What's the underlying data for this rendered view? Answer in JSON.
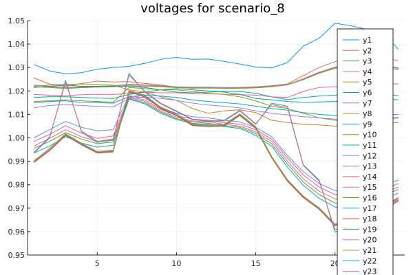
{
  "chart_data": {
    "type": "line",
    "title": "voltages for scenario_8",
    "xlabel": "",
    "ylabel": "",
    "xlim": [
      0.6,
      24.4
    ],
    "ylim": [
      0.95,
      1.05
    ],
    "xticks": [
      5,
      10,
      15,
      20
    ],
    "yticks": [
      0.95,
      0.96,
      0.97,
      0.98,
      0.99,
      1.0,
      1.01,
      1.02,
      1.03,
      1.04,
      1.05
    ],
    "ytick_labels": [
      "0.95",
      "0.96",
      "0.97",
      "0.98",
      "0.99",
      "1.00",
      "1.01",
      "1.02",
      "1.03",
      "1.04",
      "1.05"
    ],
    "grid": true,
    "legend_position": "top-right",
    "x": [
      1,
      2,
      3,
      4,
      5,
      6,
      7,
      8,
      9,
      10,
      11,
      12,
      13,
      14,
      15,
      16,
      17,
      18,
      19,
      20,
      21,
      22,
      23,
      24
    ],
    "series": [
      {
        "name": "y1",
        "color": "#009AFA",
        "values": [
          1.0313,
          1.0285,
          1.0273,
          1.0278,
          1.0293,
          1.03,
          1.0305,
          1.0318,
          1.0335,
          1.0343,
          1.0335,
          1.0336,
          1.0326,
          1.0315,
          1.0302,
          1.0298,
          1.0321,
          1.0391,
          1.0425,
          1.0489,
          1.0478,
          1.0463,
          1.0448,
          1.0378
        ]
      },
      {
        "name": "y2",
        "color": "#E36F47",
        "values": [
          1.0255,
          1.023,
          1.022,
          1.0232,
          1.0242,
          1.0238,
          1.024,
          1.0232,
          1.0226,
          1.0215,
          1.0212,
          1.0215,
          1.0214,
          1.0215,
          1.0218,
          1.0222,
          1.023,
          1.0265,
          1.03,
          1.0325,
          1.0345,
          1.0345,
          1.034,
          1.033
        ]
      },
      {
        "name": "y3",
        "color": "#3EA44E",
        "values": [
          1.0225,
          1.022,
          1.0215,
          1.0218,
          1.022,
          1.0222,
          1.0228,
          1.0226,
          1.0222,
          1.0218,
          1.0216,
          1.0216,
          1.0215,
          1.0215,
          1.0216,
          1.0222,
          1.0228,
          1.025,
          1.0278,
          1.03,
          1.0312,
          1.0315,
          1.031,
          1.0298
        ]
      },
      {
        "name": "y4",
        "color": "#C371D2",
        "values": [
          1.0225,
          1.0218,
          1.0213,
          1.0215,
          1.0218,
          1.022,
          1.0226,
          1.0224,
          1.022,
          1.0216,
          1.0215,
          1.0214,
          1.0214,
          1.0213,
          1.0215,
          1.022,
          1.0228,
          1.0252,
          1.028,
          1.0302,
          1.0313,
          1.0316,
          1.031,
          1.0295
        ]
      },
      {
        "name": "y5",
        "color": "#AC8D18",
        "values": [
          1.0218,
          1.0215,
          1.021,
          1.0214,
          1.0216,
          1.0218,
          1.0222,
          1.022,
          1.0218,
          1.0214,
          1.0212,
          1.0212,
          1.0211,
          1.0211,
          1.0213,
          1.0218,
          1.0226,
          1.0248,
          1.0275,
          1.0296,
          1.0308,
          1.031,
          1.0305,
          1.029
        ]
      },
      {
        "name": "y6",
        "color": "#00A9AD",
        "values": [
          1.0215,
          1.022,
          1.0225,
          1.022,
          1.022,
          1.022,
          1.022,
          1.0215,
          1.0205,
          1.0195,
          1.0192,
          1.0195,
          1.0198,
          1.0198,
          1.019,
          1.0175,
          1.0163,
          1.0172,
          1.0178,
          1.0182,
          1.0188,
          1.019,
          1.0188,
          1.018
        ]
      },
      {
        "name": "y7",
        "color": "#ED5E93",
        "values": [
          1.0185,
          1.0182,
          1.018,
          1.0184,
          1.0186,
          1.0185,
          1.019,
          1.0195,
          1.0192,
          1.0192,
          1.0188,
          1.0188,
          1.0186,
          1.0184,
          1.0182,
          1.0175,
          1.0172,
          1.0198,
          1.0215,
          1.0218,
          1.0222,
          1.0228,
          1.0232,
          1.023
        ]
      },
      {
        "name": "y8",
        "color": "#C68224",
        "values": [
          1.022,
          1.0225,
          1.0228,
          1.023,
          1.0228,
          1.0225,
          1.0205,
          1.0195,
          1.0175,
          1.016,
          1.0125,
          1.0105,
          1.0115,
          1.012,
          1.0108,
          1.0075,
          1.0065,
          1.0058,
          1.0055,
          1.005,
          1.0055,
          1.0065,
          1.0078,
          1.0085
        ]
      },
      {
        "name": "y9",
        "color": "#00A98D",
        "values": [
          1.0172,
          1.0175,
          1.0175,
          1.0172,
          1.017,
          1.0168,
          1.0185,
          1.0195,
          1.0205,
          1.021,
          1.0205,
          1.02,
          1.0195,
          1.0185,
          1.0168,
          1.0162,
          1.0155,
          1.0152,
          1.0153,
          1.0155,
          1.016,
          1.017,
          1.0168,
          1.0162
        ]
      },
      {
        "name": "y10",
        "color": "#8E971E",
        "values": [
          1.0155,
          1.0158,
          1.0162,
          1.0158,
          1.0155,
          1.0152,
          1.0215,
          1.021,
          1.0205,
          1.0205,
          1.0198,
          1.019,
          1.0185,
          1.0175,
          1.0158,
          1.0135,
          1.0125,
          1.0105,
          1.0085,
          1.0075,
          1.0065,
          1.0058,
          1.0062,
          1.0065
        ]
      },
      {
        "name": "y11",
        "color": "#00A8CB",
        "values": [
          1.015,
          1.0155,
          1.0158,
          1.0152,
          1.015,
          1.0148,
          1.0175,
          1.0182,
          1.0178,
          1.0172,
          1.0162,
          1.0155,
          1.015,
          1.0145,
          1.0135,
          1.0125,
          1.0118,
          1.0108,
          1.01,
          1.0095,
          1.0092,
          1.0088,
          1.0095,
          1.01
        ]
      },
      {
        "name": "y12",
        "color": "#9B7FE8",
        "values": [
          1.0128,
          1.0138,
          1.0142,
          1.0138,
          1.0135,
          1.0132,
          1.0168,
          1.0175,
          1.0168,
          1.016,
          1.0148,
          1.014,
          1.0135,
          1.0128,
          1.0115,
          1.0105,
          1.0098,
          1.009,
          1.0085,
          1.008,
          1.0078,
          1.0075,
          1.008,
          1.0088
        ]
      },
      {
        "name": "y13",
        "color": "#618DF6",
        "values": [
          1.0,
          1.0035,
          1.007,
          1.0045,
          1.003,
          1.0035,
          1.018,
          1.017,
          1.013,
          1.0105,
          1.009,
          1.0085,
          1.0075,
          1.0068,
          1.0045,
          1.0005,
          0.9925,
          0.9855,
          0.9805,
          0.9775,
          0.9765,
          0.9775,
          0.9795,
          0.982
        ]
      },
      {
        "name": "y14",
        "color": "#F05F73",
        "values": [
          0.9985,
          1.0015,
          1.0052,
          1.002,
          0.9998,
          1.0008,
          1.0175,
          1.0162,
          1.0122,
          1.0095,
          1.008,
          1.0075,
          1.0065,
          1.0058,
          1.0035,
          0.9995,
          0.9915,
          0.9842,
          0.979,
          0.9758,
          0.975,
          0.976,
          0.978,
          0.9805
        ]
      },
      {
        "name": "y15",
        "color": "#DD64B5",
        "values": [
          0.9965,
          0.9998,
          1.0035,
          1.0005,
          0.9985,
          0.9992,
          1.0172,
          1.0155,
          1.0115,
          1.0088,
          1.0072,
          1.0068,
          1.0058,
          1.005,
          1.0025,
          0.9985,
          0.99,
          0.9825,
          0.9772,
          0.974,
          0.9732,
          0.9745,
          0.9765,
          0.979
        ]
      },
      {
        "name": "y16",
        "color": "#6B9D18",
        "values": [
          0.9955,
          0.9985,
          1.0022,
          0.9995,
          0.9975,
          0.9982,
          1.0168,
          1.015,
          1.011,
          1.0082,
          1.0068,
          1.0062,
          1.0052,
          1.0045,
          1.0018,
          0.9975,
          0.9888,
          0.9812,
          0.9758,
          0.9722,
          0.9715,
          0.973,
          0.9752,
          0.978
        ]
      },
      {
        "name": "y17",
        "color": "#00AAD4",
        "values": [
          0.9935,
          0.9965,
          1.0005,
          0.9978,
          0.996,
          0.9968,
          1.0165,
          1.0145,
          1.0105,
          1.0078,
          1.0062,
          1.0058,
          1.0048,
          1.004,
          1.001,
          0.9965,
          0.9875,
          0.9798,
          0.9742,
          0.9705,
          0.9698,
          0.9712,
          0.9735,
          0.9765
        ]
      },
      {
        "name": "y18",
        "color": "#E04A2F",
        "values": [
          0.9895,
          0.9945,
          1.001,
          0.997,
          0.9935,
          0.994,
          1.0195,
          1.0175,
          1.0125,
          1.0095,
          1.0052,
          1.0048,
          1.005,
          1.0095,
          1.004,
          0.9915,
          0.9815,
          0.9745,
          0.9695,
          0.9625,
          0.9645,
          0.967,
          0.97,
          0.9735
        ]
      },
      {
        "name": "y19",
        "color": "#2F9C51",
        "values": [
          0.9898,
          0.995,
          1.0012,
          0.9972,
          0.9938,
          0.9942,
          1.0198,
          1.0178,
          1.0128,
          1.0098,
          1.0055,
          1.005,
          1.0052,
          1.0098,
          1.0042,
          0.9918,
          0.9818,
          0.9748,
          0.9698,
          0.9628,
          0.9648,
          0.9675,
          0.9705,
          0.974
        ]
      },
      {
        "name": "y20",
        "color": "#B07DDD",
        "values": [
          0.99,
          0.9952,
          1.0015,
          0.9975,
          0.994,
          0.9945,
          1.02,
          1.018,
          1.013,
          1.01,
          1.0058,
          1.0052,
          1.0055,
          1.01,
          1.0045,
          0.992,
          0.982,
          0.975,
          0.97,
          0.963,
          0.965,
          0.9678,
          0.9708,
          0.9742
        ]
      },
      {
        "name": "y21",
        "color": "#B9912A",
        "values": [
          0.9902,
          0.9955,
          1.0018,
          0.9978,
          0.9942,
          0.9948,
          1.0202,
          1.0182,
          1.0132,
          1.0102,
          1.006,
          1.0055,
          1.0058,
          1.0102,
          1.0048,
          0.9922,
          0.9822,
          0.9752,
          0.9702,
          0.9632,
          0.9652,
          0.968,
          0.971,
          0.9745
        ]
      },
      {
        "name": "y22",
        "color": "#00AFB1",
        "values": [
          0.9935,
          1.0,
          1.0245,
          1.0025,
          0.998,
          0.999,
          1.0275,
          1.0195,
          1.0145,
          1.0112,
          1.0078,
          1.007,
          1.0072,
          1.0115,
          1.0058,
          1.0148,
          1.0135,
          0.9885,
          0.982,
          0.9598,
          0.9625,
          0.9658,
          0.969,
          0.973
        ]
      },
      {
        "name": "y23",
        "color": "#E85C92",
        "values": [
          0.9938,
          1.0005,
          1.0238,
          1.003,
          0.9985,
          0.9995,
          1.0268,
          1.0198,
          1.0148,
          1.0115,
          1.008,
          1.0072,
          1.0075,
          1.0118,
          1.006,
          1.0142,
          1.013,
          0.9882,
          0.9815,
          0.9608,
          0.963,
          0.966,
          0.9692,
          0.9732
        ]
      }
    ]
  }
}
